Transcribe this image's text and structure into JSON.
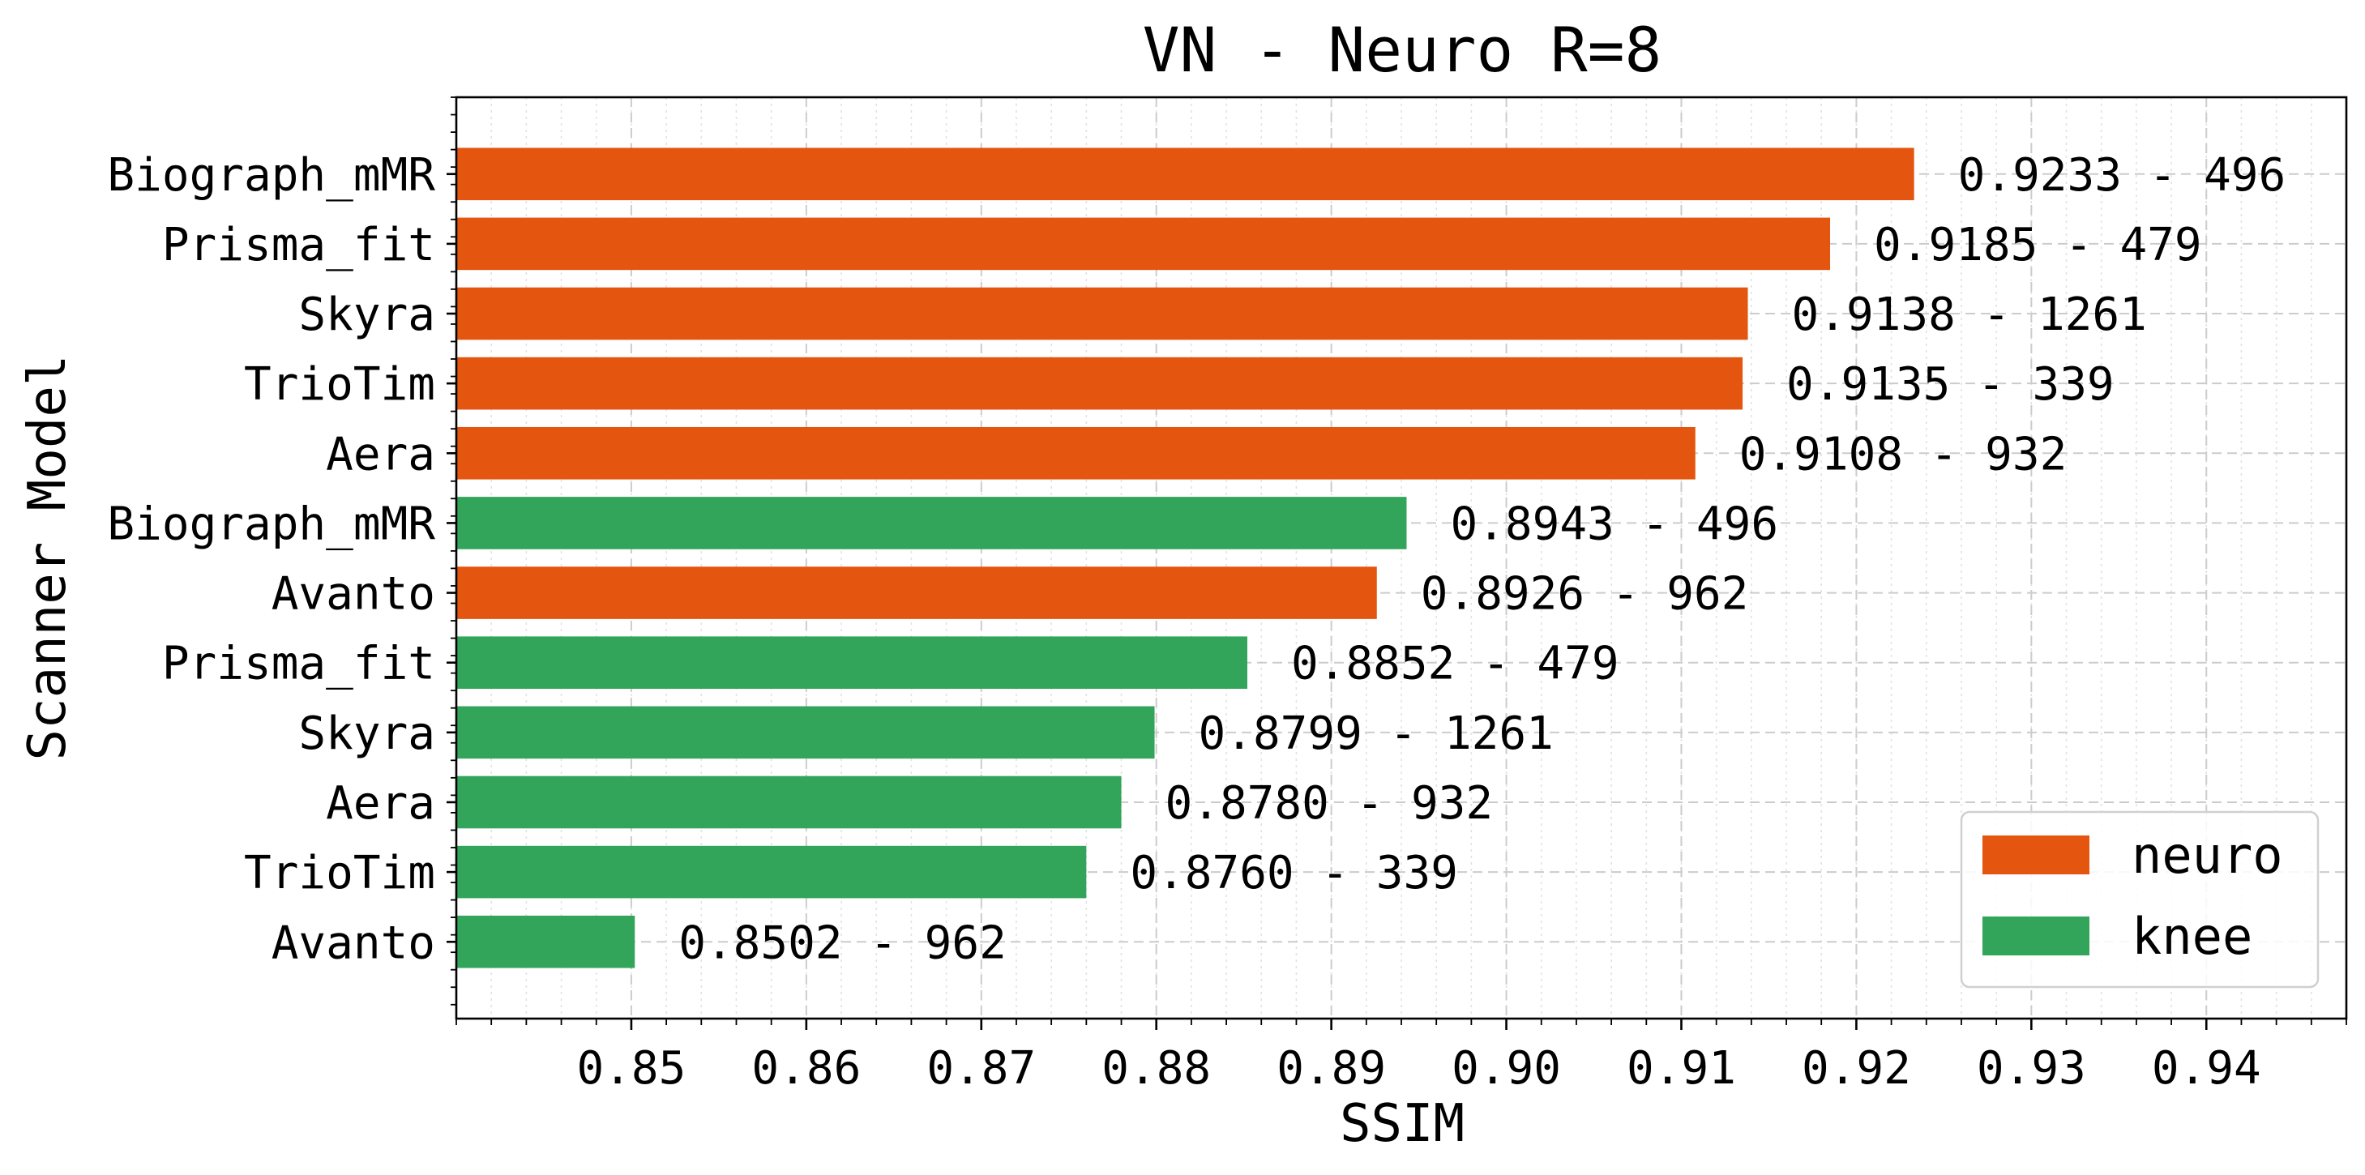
{
  "chart_data": {
    "type": "bar",
    "orientation": "horizontal",
    "title": "VN - Neuro R=8",
    "xlabel": "SSIM",
    "ylabel": "Scanner Model",
    "xlim": [
      0.84,
      0.948
    ],
    "xticks": [
      0.85,
      0.86,
      0.87,
      0.88,
      0.89,
      0.9,
      0.91,
      0.92,
      0.93,
      0.94
    ],
    "xtick_labels": [
      "0.85",
      "0.86",
      "0.87",
      "0.88",
      "0.89",
      "0.90",
      "0.91",
      "0.92",
      "0.93",
      "0.94"
    ],
    "x_minor_step": 0.002,
    "y_minor_per_bar": 4,
    "grid": true,
    "legend_position": "bottom-right",
    "legend": [
      {
        "label": "neuro",
        "color": "#e4550f"
      },
      {
        "label": "knee",
        "color": "#33a55a"
      }
    ],
    "bars": [
      {
        "category": "Biograph_mMR",
        "group": "neuro",
        "value": 0.9233,
        "label": "0.9233 - 496"
      },
      {
        "category": "Prisma_fit",
        "group": "neuro",
        "value": 0.9185,
        "label": "0.9185 - 479"
      },
      {
        "category": "Skyra",
        "group": "neuro",
        "value": 0.9138,
        "label": "0.9138 - 1261"
      },
      {
        "category": "TrioTim",
        "group": "neuro",
        "value": 0.9135,
        "label": "0.9135 - 339"
      },
      {
        "category": "Aera",
        "group": "neuro",
        "value": 0.9108,
        "label": "0.9108 - 932"
      },
      {
        "category": "Biograph_mMR",
        "group": "knee",
        "value": 0.8943,
        "label": "0.8943 - 496"
      },
      {
        "category": "Avanto",
        "group": "neuro",
        "value": 0.8926,
        "label": "0.8926 - 962"
      },
      {
        "category": "Prisma_fit",
        "group": "knee",
        "value": 0.8852,
        "label": "0.8852 - 479"
      },
      {
        "category": "Skyra",
        "group": "knee",
        "value": 0.8799,
        "label": "0.8799 - 1261"
      },
      {
        "category": "Aera",
        "group": "knee",
        "value": 0.878,
        "label": "0.8780 - 932"
      },
      {
        "category": "TrioTim",
        "group": "knee",
        "value": 0.876,
        "label": "0.8760 - 339"
      },
      {
        "category": "Avanto",
        "group": "knee",
        "value": 0.8502,
        "label": "0.8502 - 962"
      }
    ]
  }
}
